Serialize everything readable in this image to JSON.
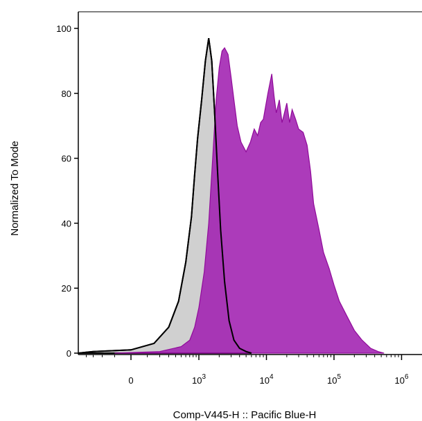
{
  "chart_data": {
    "type": "area",
    "title": "",
    "xlabel": "Comp-V445-H :: Pacific Blue-H",
    "ylabel": "Normalized To Mode",
    "x_scale": "biexponential",
    "ylim": [
      0,
      105
    ],
    "y_ticks": [
      0,
      20,
      40,
      60,
      80,
      100
    ],
    "x_ticks": [
      {
        "value": 0,
        "base": "0",
        "exp": ""
      },
      {
        "value": 1000,
        "base": "10",
        "exp": "3"
      },
      {
        "value": 10000,
        "base": "10",
        "exp": "4"
      },
      {
        "value": 100000,
        "base": "10",
        "exp": "5"
      },
      {
        "value": 1000000,
        "base": "10",
        "exp": "6"
      }
    ],
    "series": [
      {
        "color": "#d0d0d0",
        "stroke": "#000000",
        "points": [
          [
            -800,
            0
          ],
          [
            -300,
            0.5
          ],
          [
            0,
            1
          ],
          [
            150,
            3
          ],
          [
            300,
            8
          ],
          [
            450,
            16
          ],
          [
            600,
            28
          ],
          [
            750,
            42
          ],
          [
            850,
            55
          ],
          [
            950,
            66
          ],
          [
            1100,
            78
          ],
          [
            1250,
            90
          ],
          [
            1400,
            97
          ],
          [
            1550,
            90
          ],
          [
            1700,
            75
          ],
          [
            1900,
            55
          ],
          [
            2100,
            38
          ],
          [
            2400,
            22
          ],
          [
            2800,
            10
          ],
          [
            3300,
            4
          ],
          [
            4000,
            1.5
          ],
          [
            5000,
            0.5
          ],
          [
            6000,
            0
          ]
        ]
      },
      {
        "color": "#a020b0",
        "stroke": "#900a9a",
        "points": [
          [
            -100,
            0
          ],
          [
            200,
            0.5
          ],
          [
            500,
            2
          ],
          [
            700,
            4
          ],
          [
            850,
            8
          ],
          [
            1000,
            14
          ],
          [
            1200,
            25
          ],
          [
            1400,
            40
          ],
          [
            1600,
            60
          ],
          [
            1800,
            78
          ],
          [
            2000,
            88
          ],
          [
            2200,
            93
          ],
          [
            2400,
            94
          ],
          [
            2700,
            92
          ],
          [
            3000,
            85
          ],
          [
            3300,
            78
          ],
          [
            3700,
            70
          ],
          [
            4200,
            65
          ],
          [
            5000,
            62
          ],
          [
            5800,
            65
          ],
          [
            6600,
            69
          ],
          [
            7400,
            67
          ],
          [
            8200,
            71
          ],
          [
            9000,
            72
          ],
          [
            10500,
            80
          ],
          [
            12000,
            86
          ],
          [
            13000,
            79
          ],
          [
            14000,
            74
          ],
          [
            15500,
            78
          ],
          [
            17000,
            71
          ],
          [
            18500,
            74
          ],
          [
            20000,
            77
          ],
          [
            22000,
            71
          ],
          [
            24000,
            75
          ],
          [
            27000,
            72
          ],
          [
            30000,
            69
          ],
          [
            35000,
            68
          ],
          [
            40000,
            64
          ],
          [
            45000,
            56
          ],
          [
            50000,
            46
          ],
          [
            60000,
            38
          ],
          [
            70000,
            31
          ],
          [
            85000,
            26
          ],
          [
            100000,
            21
          ],
          [
            120000,
            16
          ],
          [
            150000,
            12
          ],
          [
            200000,
            7
          ],
          [
            260000,
            4
          ],
          [
            350000,
            1.5
          ],
          [
            450000,
            0.5
          ],
          [
            550000,
            0
          ]
        ]
      }
    ]
  }
}
